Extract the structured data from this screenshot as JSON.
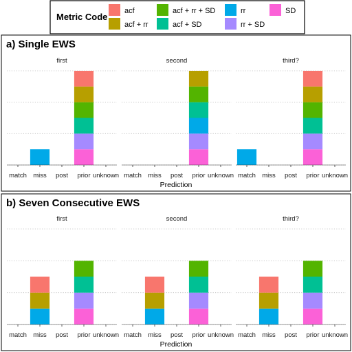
{
  "legend": {
    "title": "Metric Code",
    "items": [
      {
        "label": "acf",
        "color": "#F8766D"
      },
      {
        "label": "acf + rr",
        "color": "#B79F00"
      },
      {
        "label": "acf + rr + SD",
        "color": "#53B400"
      },
      {
        "label": "acf + SD",
        "color": "#00C094"
      },
      {
        "label": "rr",
        "color": "#00A9E8"
      },
      {
        "label": "rr + SD",
        "color": "#A58AFF"
      },
      {
        "label": "SD",
        "color": "#FB61D7"
      }
    ]
  },
  "chart_data": [
    {
      "type": "bar",
      "title": "a) Single EWS",
      "xlabel": "Prediction",
      "ylabel": "",
      "stacked": true,
      "ylim": [
        0,
        6
      ],
      "grid": true,
      "facets": [
        "first",
        "second",
        "third?"
      ],
      "categories": [
        "match",
        "miss",
        "post",
        "prior",
        "unknown"
      ],
      "series": [
        {
          "name": "acf",
          "values": [
            [
              0,
              0,
              0,
              1,
              0
            ],
            [
              0,
              0,
              0,
              0,
              0
            ],
            [
              0,
              0,
              0,
              1,
              0
            ]
          ]
        },
        {
          "name": "acf + rr",
          "values": [
            [
              0,
              0,
              0,
              1,
              0
            ],
            [
              0,
              0,
              0,
              1,
              0
            ],
            [
              0,
              0,
              0,
              1,
              0
            ]
          ]
        },
        {
          "name": "acf + rr + SD",
          "values": [
            [
              0,
              0,
              0,
              1,
              0
            ],
            [
              0,
              0,
              0,
              1,
              0
            ],
            [
              0,
              0,
              0,
              1,
              0
            ]
          ]
        },
        {
          "name": "acf + SD",
          "values": [
            [
              0,
              0,
              0,
              1,
              0
            ],
            [
              0,
              0,
              0,
              1,
              0
            ],
            [
              0,
              0,
              0,
              1,
              0
            ]
          ]
        },
        {
          "name": "rr",
          "values": [
            [
              0,
              1,
              0,
              0,
              0
            ],
            [
              0,
              0,
              0,
              1,
              0
            ],
            [
              1,
              0,
              0,
              0,
              0
            ]
          ]
        },
        {
          "name": "rr + SD",
          "values": [
            [
              0,
              0,
              0,
              1,
              0
            ],
            [
              0,
              0,
              0,
              1,
              0
            ],
            [
              0,
              0,
              0,
              1,
              0
            ]
          ]
        },
        {
          "name": "SD",
          "values": [
            [
              0,
              0,
              0,
              1,
              0
            ],
            [
              0,
              0,
              0,
              1,
              0
            ],
            [
              0,
              0,
              0,
              1,
              0
            ]
          ]
        }
      ]
    },
    {
      "type": "bar",
      "title": "b) Seven Consecutive EWS",
      "xlabel": "Prediction",
      "ylabel": "",
      "stacked": true,
      "ylim": [
        0,
        6
      ],
      "grid": true,
      "facets": [
        "first",
        "second",
        "third?"
      ],
      "categories": [
        "match",
        "miss",
        "post",
        "prior",
        "unknown"
      ],
      "series": [
        {
          "name": "acf",
          "values": [
            [
              0,
              1,
              0,
              0,
              0
            ],
            [
              0,
              1,
              0,
              0,
              0
            ],
            [
              0,
              1,
              0,
              0,
              0
            ]
          ]
        },
        {
          "name": "acf + rr",
          "values": [
            [
              0,
              1,
              0,
              0,
              0
            ],
            [
              0,
              1,
              0,
              0,
              0
            ],
            [
              0,
              1,
              0,
              0,
              0
            ]
          ]
        },
        {
          "name": "acf + rr + SD",
          "values": [
            [
              0,
              0,
              0,
              1,
              0
            ],
            [
              0,
              0,
              0,
              1,
              0
            ],
            [
              0,
              0,
              0,
              1,
              0
            ]
          ]
        },
        {
          "name": "acf + SD",
          "values": [
            [
              0,
              0,
              0,
              1,
              0
            ],
            [
              0,
              0,
              0,
              1,
              0
            ],
            [
              0,
              0,
              0,
              1,
              0
            ]
          ]
        },
        {
          "name": "rr",
          "values": [
            [
              0,
              1,
              0,
              0,
              0
            ],
            [
              0,
              1,
              0,
              0,
              0
            ],
            [
              0,
              1,
              0,
              0,
              0
            ]
          ]
        },
        {
          "name": "rr + SD",
          "values": [
            [
              0,
              0,
              0,
              1,
              0
            ],
            [
              0,
              0,
              0,
              1,
              0
            ],
            [
              0,
              0,
              0,
              1,
              0
            ]
          ]
        },
        {
          "name": "SD",
          "values": [
            [
              0,
              0,
              0,
              1,
              0
            ],
            [
              0,
              0,
              0,
              1,
              0
            ],
            [
              0,
              0,
              0,
              1,
              0
            ]
          ]
        }
      ]
    }
  ]
}
